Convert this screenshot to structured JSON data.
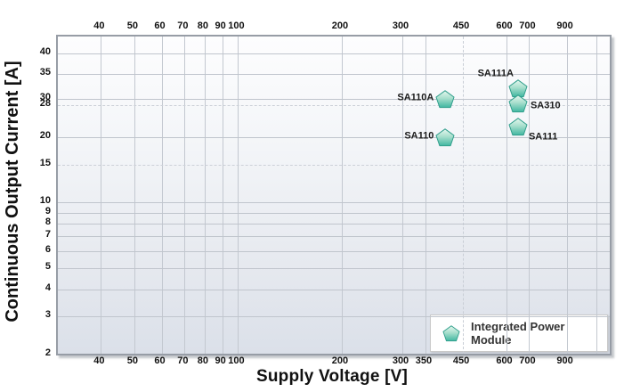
{
  "chart_data": {
    "type": "scatter",
    "title": "",
    "xlabel": "Supply Voltage [V]",
    "ylabel": "Continuous Output Current [A]",
    "x_scale": "log",
    "y_scale": "log",
    "xlim": [
      30,
      1200
    ],
    "ylim": [
      2,
      44
    ],
    "grid": true,
    "x_ticks_top": [
      40,
      50,
      60,
      70,
      80,
      90,
      100,
      200,
      300,
      450,
      600,
      700,
      900
    ],
    "x_ticks_bottom": [
      40,
      50,
      60,
      70,
      80,
      90,
      100,
      200,
      300,
      350,
      450,
      600,
      700,
      900
    ],
    "x_gridlines": [
      40,
      50,
      60,
      70,
      80,
      90,
      100,
      200,
      300,
      350,
      450,
      600,
      700,
      900,
      1100
    ],
    "x_gridlines_dashed": [
      450
    ],
    "y_ticks": [
      40,
      35,
      30,
      28,
      20,
      15,
      10,
      9,
      8,
      7,
      6,
      5,
      4,
      3,
      2
    ],
    "y_gridlines_dashed": [
      28,
      15
    ],
    "marker": {
      "shape": "pentagon",
      "fill_top": "#e6f7ef",
      "fill_mid": "#a8dfcd",
      "fill_bottom": "#41b7a1",
      "stroke": "#2f9e8b"
    },
    "legend_position": "bottom-right",
    "legend_label": "Integrated Power Module",
    "points": [
      {
        "name": "SA110A",
        "x": 400,
        "y": 30,
        "label_pos": "left"
      },
      {
        "name": "SA110",
        "x": 400,
        "y": 20,
        "label_pos": "left"
      },
      {
        "name": "SA111A",
        "x": 650,
        "y": 32,
        "label_pos": "above-left"
      },
      {
        "name": "SA310",
        "x": 650,
        "y": 28.5,
        "label_pos": "right"
      },
      {
        "name": "SA111",
        "x": 650,
        "y": 22.5,
        "label_pos": "below-right"
      }
    ]
  }
}
